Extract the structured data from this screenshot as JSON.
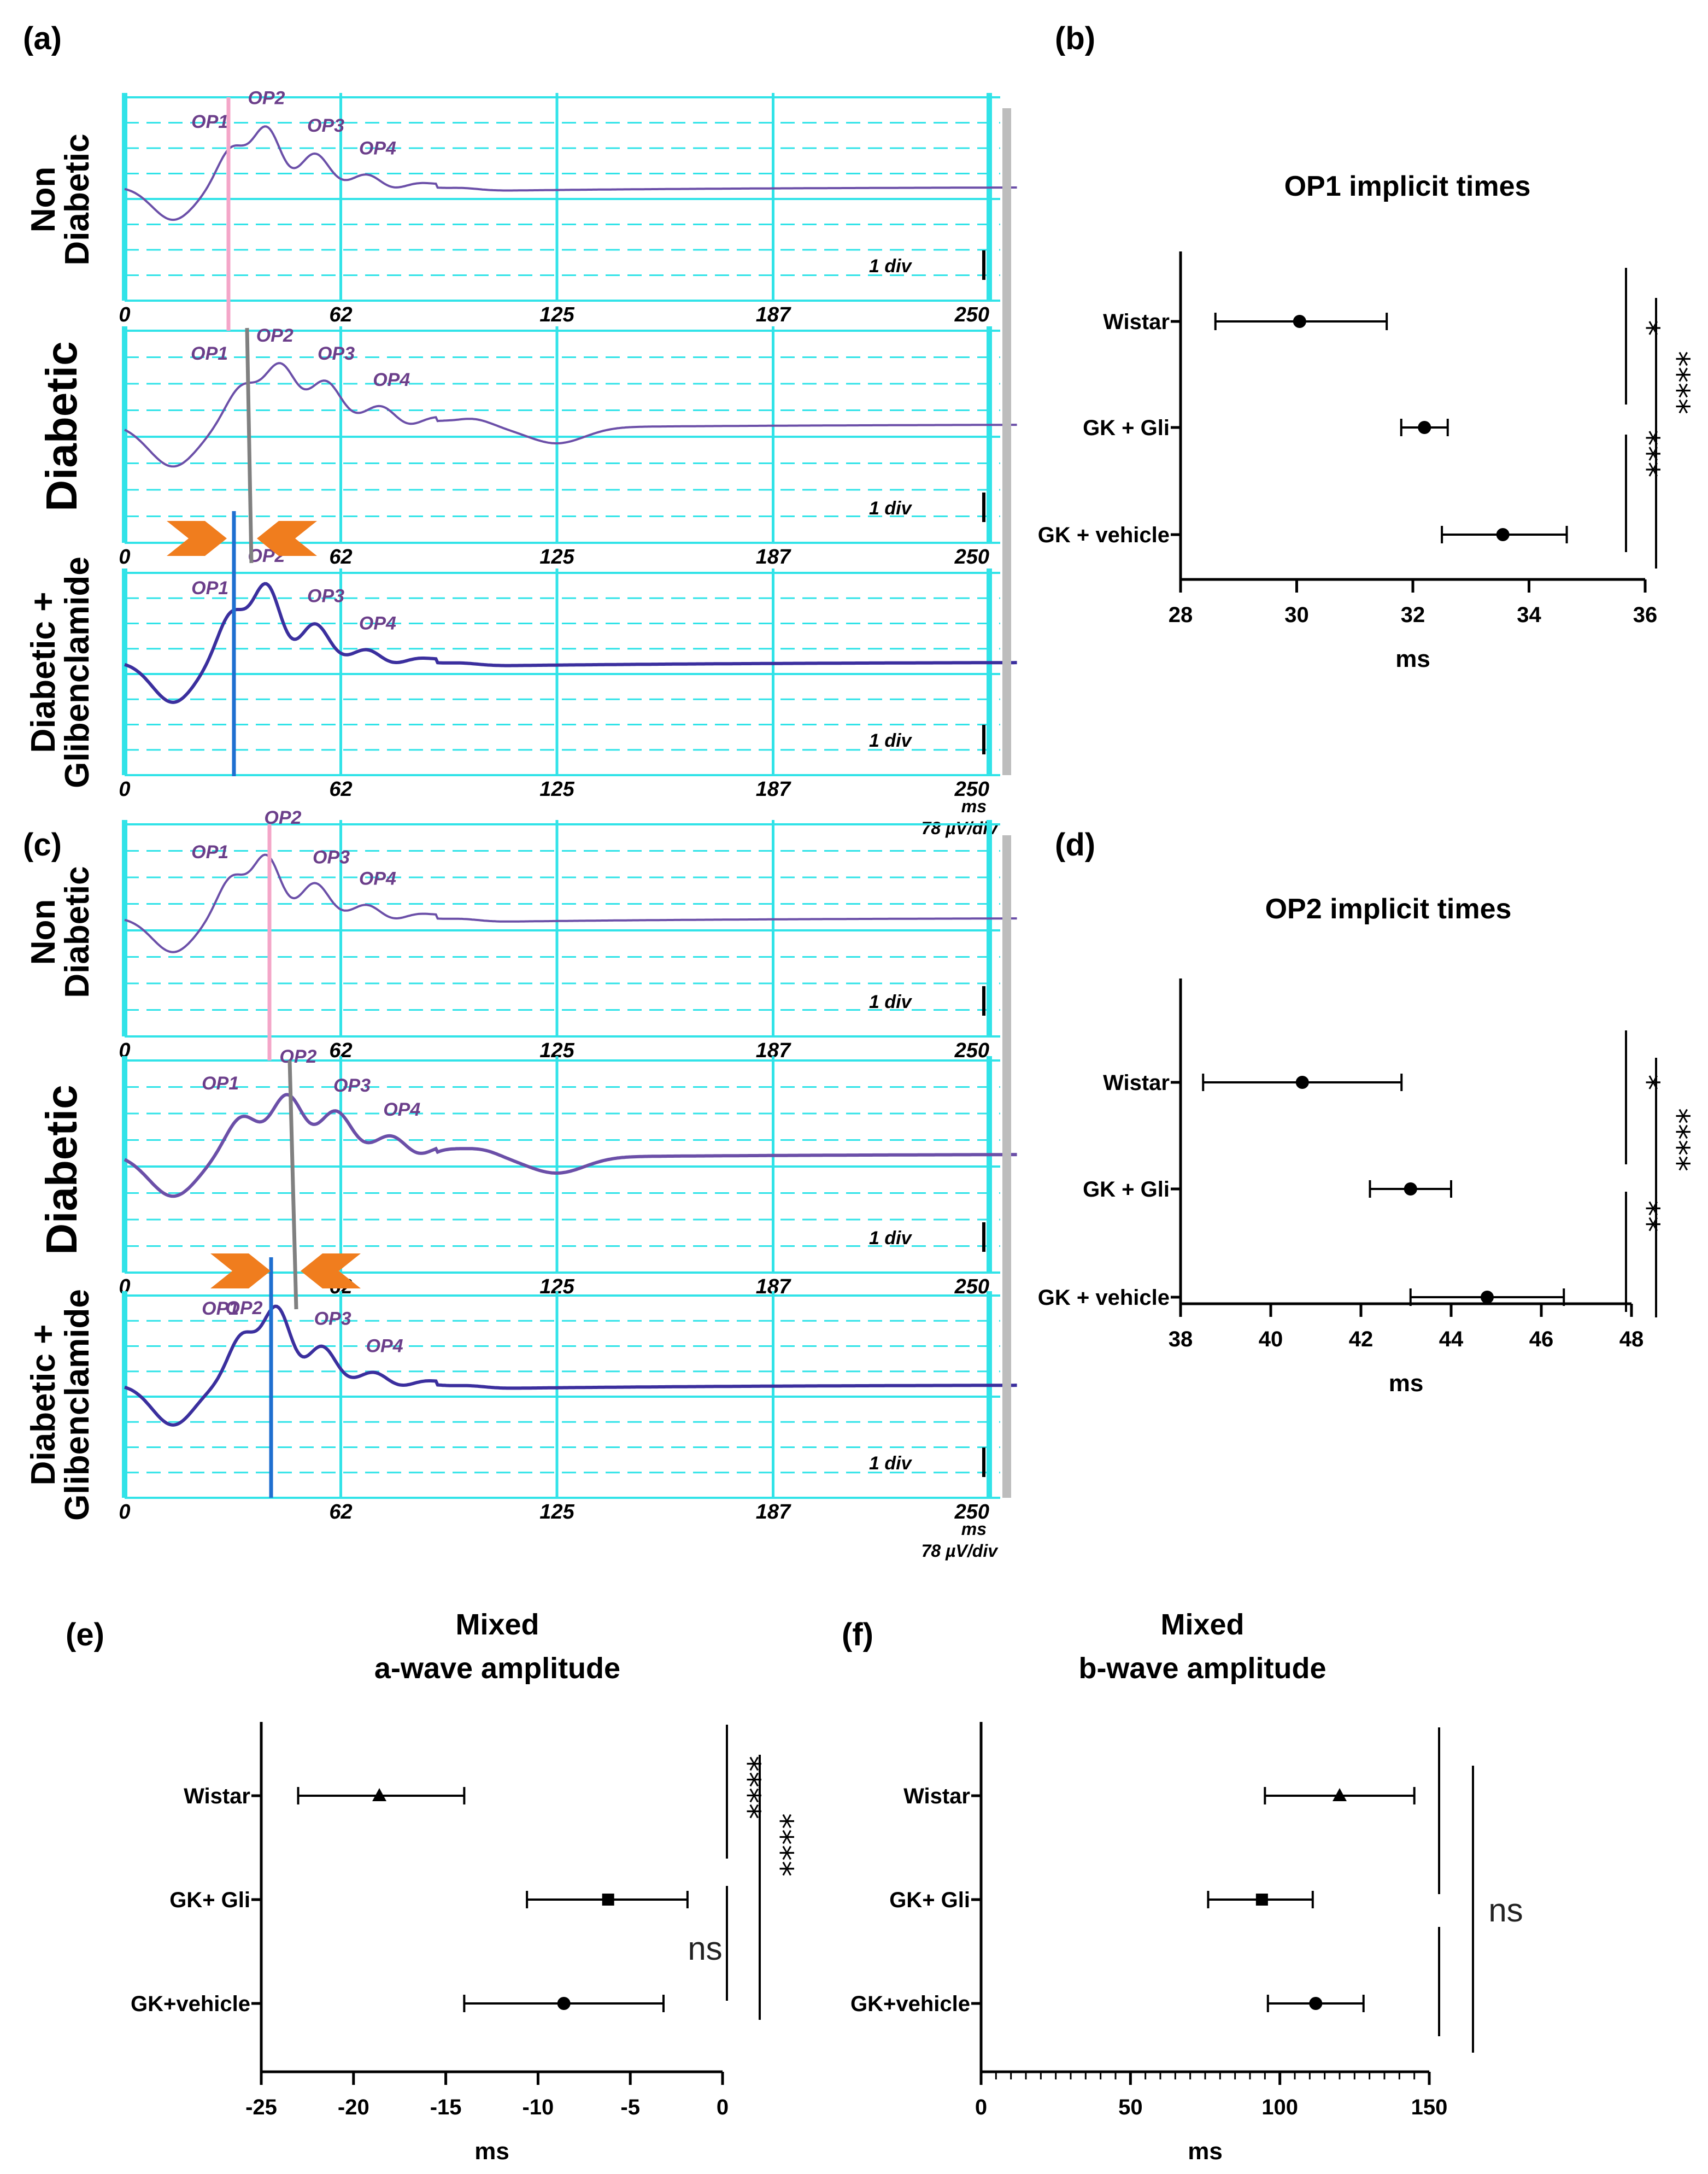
{
  "panels": {
    "a": "(a)",
    "b": "(b)",
    "c": "(c)",
    "d": "(d)",
    "e": "(e)",
    "f": "(f)"
  },
  "erg": {
    "rows": {
      "non_line1": "Non",
      "non_line2": "Diabetic",
      "diabetic": "Diabetic",
      "gli_line1": "Diabetic +",
      "gli_line2": "Glibenclamide"
    },
    "op_labels": [
      "OP1",
      "OP2",
      "OP3",
      "OP4"
    ],
    "ticks": [
      "0",
      "62",
      "125",
      "187",
      "250"
    ],
    "scale_label": "1 div",
    "unit_ms": "ms",
    "unit_uv": "78 µV/div",
    "colors": {
      "grid": "#31e3e8",
      "trace": "#6b4fa8",
      "trace_dark": "#3b2f9e",
      "pink": "#f4a6c8",
      "gray": "#808080",
      "blue": "#1f6fd0",
      "arrow": "#f07d1e"
    }
  },
  "chart_data": [
    {
      "id": "b",
      "type": "scatter",
      "title": "OP1 implicit times",
      "xlabel": "ms",
      "xlim": [
        28,
        36
      ],
      "xticks": [
        28,
        30,
        32,
        34,
        36
      ],
      "categories": [
        "Wistar",
        "GK + Gli",
        "GK + vehicle"
      ],
      "means": [
        30.05,
        32.2,
        33.55
      ],
      "err_low": [
        28.6,
        31.8,
        32.5
      ],
      "err_high": [
        31.55,
        32.6,
        34.65
      ],
      "marker": [
        "circle",
        "circle",
        "circle"
      ],
      "comparisons": [
        {
          "label": "*",
          "from": "Wistar",
          "to": "GK + Gli"
        },
        {
          "label": "***",
          "from": "GK + Gli",
          "to": "GK + vehicle"
        },
        {
          "label": "****",
          "from": "Wistar",
          "to": "GK + vehicle"
        }
      ]
    },
    {
      "id": "d",
      "type": "scatter",
      "title": "OP2 implicit times",
      "xlabel": "ms",
      "xlim": [
        38,
        48
      ],
      "xticks": [
        38,
        40,
        42,
        44,
        46,
        48
      ],
      "categories": [
        "Wistar",
        "GK + Gli",
        "GK + vehicle"
      ],
      "means": [
        40.7,
        43.1,
        44.8
      ],
      "err_low": [
        38.5,
        42.2,
        43.1
      ],
      "err_high": [
        42.9,
        44.0,
        46.5
      ],
      "marker": [
        "circle",
        "circle",
        "circle"
      ],
      "comparisons": [
        {
          "label": "*",
          "from": "Wistar",
          "to": "GK + Gli"
        },
        {
          "label": "**",
          "from": "GK + Gli",
          "to": "GK + vehicle"
        },
        {
          "label": "****",
          "from": "Wistar",
          "to": "GK + vehicle"
        }
      ]
    },
    {
      "id": "e",
      "type": "scatter",
      "title": "Mixed",
      "subtitle": "a-wave amplitude",
      "xlabel": "ms",
      "xlim": [
        -25,
        0
      ],
      "xticks": [
        -25,
        -20,
        -15,
        -10,
        -5,
        0
      ],
      "categories": [
        "Wistar",
        "GK+ Gli",
        "GK+vehicle"
      ],
      "means": [
        -18.6,
        -6.2,
        -8.6
      ],
      "err_low": [
        -23.0,
        -10.6,
        -14.0
      ],
      "err_high": [
        -14.0,
        -1.9,
        -3.2
      ],
      "marker": [
        "triangle",
        "square",
        "circle"
      ],
      "comparisons": [
        {
          "label": "****",
          "from": "Wistar",
          "to": "GK+ Gli"
        },
        {
          "label": "ns",
          "from": "GK+ Gli",
          "to": "GK+vehicle"
        },
        {
          "label": "****",
          "from": "Wistar",
          "to": "GK+vehicle"
        }
      ]
    },
    {
      "id": "f",
      "type": "scatter",
      "title": "Mixed",
      "subtitle": "b-wave amplitude",
      "xlabel": "ms",
      "xlim": [
        0,
        150
      ],
      "xticks": [
        0,
        50,
        100,
        150
      ],
      "categories": [
        "Wistar",
        "GK+ Gli",
        "GK+vehicle"
      ],
      "means": [
        120,
        94,
        112
      ],
      "err_low": [
        95,
        76,
        96
      ],
      "err_high": [
        145,
        111,
        128
      ],
      "marker": [
        "triangle",
        "square",
        "circle"
      ],
      "comparisons": [
        {
          "label": "ns",
          "from": "Wistar",
          "to": "GK+vehicle"
        }
      ]
    }
  ]
}
